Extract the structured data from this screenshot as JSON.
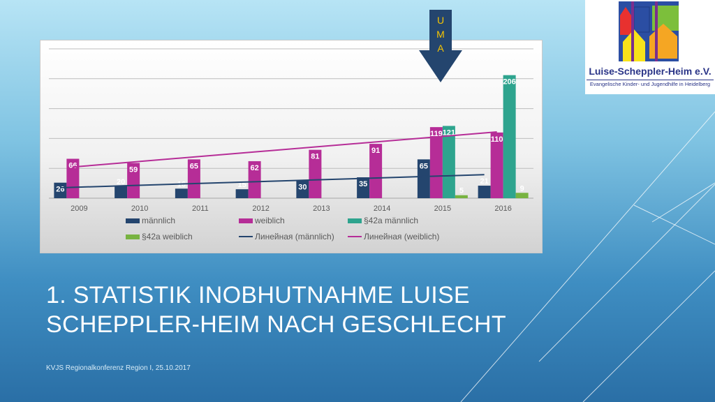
{
  "slide": {
    "title": "1. Statistik Inobhutnahme Luise Scheppler-Heim nach Geschlecht",
    "footer": "KVJS Regionalkonferenz Region I, 25.10.2017"
  },
  "logo": {
    "title": "Luise-Scheppler-Heim e.V.",
    "subtitle": "Evangelische Kinder- und Jugendhilfe in Heidelberg"
  },
  "annotation": {
    "label": "UMA",
    "letters": [
      "U",
      "M",
      "A"
    ],
    "points_to": "2015"
  },
  "colors": {
    "maennlich": "#24456e",
    "weiblich": "#b62d97",
    "p42a_maennlich": "#2ea48e",
    "p42a_weiblich": "#78b341",
    "arrow": "#24456e",
    "uma_text": "#f7c500"
  },
  "chart_data": {
    "type": "bar",
    "categories": [
      "2009",
      "2010",
      "2011",
      "2012",
      "2013",
      "2014",
      "2015",
      "2016"
    ],
    "series": [
      {
        "name": "männlich",
        "values": [
          26,
          20,
          16,
          15,
          30,
          35,
          65,
          21
        ]
      },
      {
        "name": "weiblich",
        "values": [
          66,
          59,
          65,
          62,
          81,
          91,
          119,
          110
        ]
      },
      {
        "name": "§42a männlich",
        "values": [
          null,
          null,
          null,
          null,
          null,
          null,
          121,
          206
        ]
      },
      {
        "name": "§42a weiblich",
        "values": [
          null,
          null,
          null,
          null,
          null,
          null,
          5,
          9
        ]
      }
    ],
    "trendlines": [
      {
        "name": "Линейная (männlich)",
        "of": "männlich"
      },
      {
        "name": "Линейная (weiblich)",
        "of": "weiblich"
      }
    ],
    "legend": [
      "männlich",
      "weiblich",
      "§42a männlich",
      "§42a weiblich",
      "Линейная (männlich)",
      "Линейная (weiblich)"
    ],
    "legend_position": "bottom",
    "ylim": [
      0,
      250
    ],
    "grid": true,
    "title": "",
    "xlabel": "",
    "ylabel": ""
  }
}
